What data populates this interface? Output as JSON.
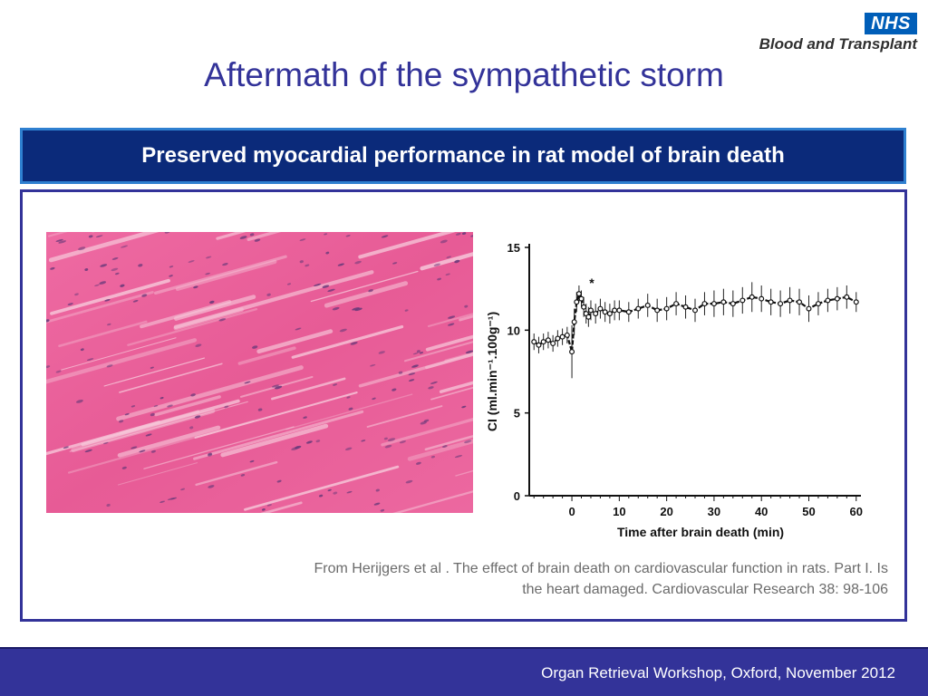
{
  "logo": {
    "badge": "NHS",
    "text": "Blood and Transplant"
  },
  "slide": {
    "title": "Aftermath of the sympathetic storm",
    "banner": "Preserved myocardial performance in rat model of brain death",
    "citation": "From Herijgers et al . The effect of brain death on cardiovascular function in rats. Part I. Is the heart damaged.  Cardiovascular Research 38: 98-106",
    "footer": "Organ Retrieval Workshop, Oxford, November 2012"
  },
  "colors": {
    "title": "#333399",
    "banner_bg": "#0b2a7a",
    "footer_bg": "#333399",
    "histology_pink": "#e9609a"
  },
  "chart_data": {
    "type": "line",
    "xlabel": "Time after brain death (min)",
    "ylabel": "CI (ml.min⁻¹.100g⁻¹)",
    "xticks": [
      0,
      10,
      20,
      30,
      40,
      50,
      60
    ],
    "yticks": [
      0,
      5,
      10,
      15
    ],
    "xlim": [
      -9,
      61
    ],
    "ylim": [
      0,
      15
    ],
    "annotation": "*",
    "series": [
      {
        "x": [
          -8,
          -7,
          -6,
          -5,
          -4,
          -3,
          -2,
          -1,
          0,
          0.5,
          1,
          1.5,
          2,
          2.5,
          3,
          3.5,
          4,
          5,
          6,
          7,
          8,
          9,
          10,
          12,
          14,
          16,
          18,
          20,
          22,
          24,
          26,
          28,
          30,
          32,
          34,
          36,
          38,
          40,
          42,
          44,
          46,
          48,
          50,
          52,
          54,
          56,
          58,
          60
        ],
        "y": [
          9.3,
          9.1,
          9.3,
          9.4,
          9.2,
          9.5,
          9.6,
          9.7,
          8.7,
          10.5,
          11.7,
          12.2,
          11.9,
          11.4,
          11.0,
          10.8,
          11.2,
          11.0,
          11.3,
          11.1,
          11.0,
          11.2,
          11.2,
          11.1,
          11.3,
          11.5,
          11.2,
          11.3,
          11.6,
          11.4,
          11.2,
          11.6,
          11.6,
          11.7,
          11.6,
          11.8,
          12.0,
          11.9,
          11.7,
          11.6,
          11.8,
          11.7,
          11.3,
          11.6,
          11.8,
          11.9,
          12.0,
          11.7
        ],
        "err": [
          0.5,
          0.5,
          0.5,
          0.5,
          0.5,
          0.5,
          0.5,
          0.5,
          1.6,
          0.8,
          0.6,
          0.5,
          0.5,
          0.6,
          0.6,
          0.6,
          0.6,
          0.6,
          0.6,
          0.6,
          0.6,
          0.6,
          0.6,
          0.6,
          0.6,
          0.7,
          0.7,
          0.7,
          0.7,
          0.7,
          0.7,
          0.7,
          0.8,
          0.8,
          0.8,
          0.8,
          0.9,
          0.8,
          0.8,
          0.8,
          0.8,
          0.8,
          0.8,
          0.7,
          0.7,
          0.7,
          0.7,
          0.6
        ]
      }
    ]
  }
}
